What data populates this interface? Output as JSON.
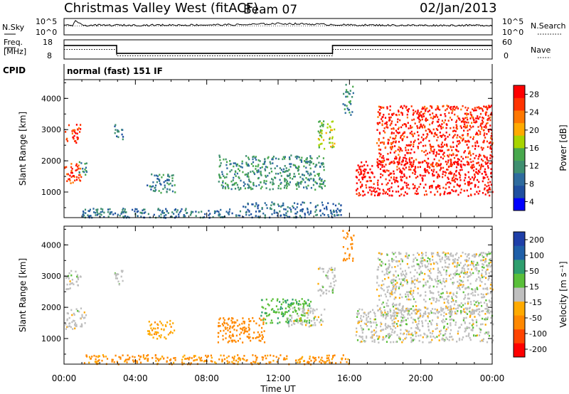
{
  "header": {
    "title": "Christmas Valley West (fitACF)",
    "beam": "Beam 07",
    "date": "02/Jan/2013"
  },
  "noise_panel": {
    "left_label": "N.Sky",
    "left_ticks": [
      "10^5",
      "10^0"
    ],
    "right_label": "N.Search",
    "right_ticks": [
      "10^5",
      "10^0"
    ]
  },
  "freq_panel": {
    "left_label_1": "Freq.",
    "left_label_2": "[MHz]",
    "left_ticks": [
      "18",
      "8"
    ],
    "right_label": "Nave",
    "right_ticks": [
      "60",
      "0"
    ]
  },
  "cpid": {
    "label": "CPID",
    "value": "normal (fast) 151 IF"
  },
  "colors": {
    "power": [
      "#0000ff",
      "#1f4fa0",
      "#2e6b9e",
      "#3f8f70",
      "#48a84d",
      "#a8d400",
      "#ffaa00",
      "#ff7700",
      "#ff3300",
      "#ff0000"
    ],
    "velocity_neg": [
      "#ff0000",
      "#ff4400",
      "#ff8800",
      "#ffaa00",
      "#ffcc33"
    ],
    "velocity_gs": "#bfbfbf",
    "velocity_pos": [
      "#5abf3a",
      "#2e9e6e",
      "#1f5fa8",
      "#1f3fa8",
      "#0000ff"
    ]
  },
  "power_colorbar": {
    "label": "Power [dB]",
    "ticks": [
      "28",
      "24",
      "20",
      "16",
      "12",
      "8",
      "4"
    ]
  },
  "velocity_colorbar": {
    "label": "Velocity [m s⁻¹]",
    "ticks": [
      "200",
      "100",
      "50",
      "15",
      "-15",
      "-50",
      "-100",
      "-200"
    ]
  },
  "axes": {
    "ylabel": "Slant Range [km]",
    "yticks": [
      "4000",
      "3000",
      "2000",
      "1000"
    ],
    "xlabel": "Time UT",
    "xticks": [
      "00:00",
      "04:00",
      "08:00",
      "12:00",
      "16:00",
      "20:00",
      "00:00"
    ]
  },
  "chart_data": [
    {
      "type": "heatmap",
      "panel": "power",
      "xlabel": "Time UT",
      "ylabel": "Slant Range [km]",
      "xlim_hours": [
        0,
        24
      ],
      "ylim_km": [
        180,
        4600
      ],
      "colorbar": "Power [dB]",
      "colorbar_range": [
        0,
        30
      ],
      "regions": [
        {
          "t": [
            0.0,
            0.95
          ],
          "r": [
            1300,
            2000
          ],
          "dB": 26
        },
        {
          "t": [
            0.0,
            0.9
          ],
          "r": [
            2600,
            3200
          ],
          "dB": 27
        },
        {
          "t": [
            0.8,
            1.3
          ],
          "r": [
            1500,
            2000
          ],
          "dB": 10
        },
        {
          "t": [
            2.8,
            3.3
          ],
          "r": [
            2700,
            3200
          ],
          "dB": 8
        },
        {
          "t": [
            4.6,
            6.2
          ],
          "r": [
            1000,
            1600
          ],
          "dB": 9
        },
        {
          "t": [
            8.6,
            14.6
          ],
          "r": [
            1100,
            2200
          ],
          "dB": 11
        },
        {
          "t": [
            1.0,
            10.0
          ],
          "r": [
            200,
            500
          ],
          "dB": 8
        },
        {
          "t": [
            10.0,
            15.5
          ],
          "r": [
            200,
            700
          ],
          "dB": 7
        },
        {
          "t": [
            14.2,
            15.2
          ],
          "r": [
            2400,
            3300
          ],
          "dB": 16
        },
        {
          "t": [
            15.6,
            16.2
          ],
          "r": [
            3500,
            4500
          ],
          "dB": 10
        },
        {
          "t": [
            16.3,
            24.0
          ],
          "r": [
            900,
            2000
          ],
          "dB": 29
        },
        {
          "t": [
            17.5,
            24.0
          ],
          "r": [
            1800,
            3800
          ],
          "dB": 27
        }
      ]
    },
    {
      "type": "heatmap",
      "panel": "velocity",
      "xlabel": "Time UT",
      "ylabel": "Slant Range [km]",
      "xlim_hours": [
        0,
        24
      ],
      "ylim_km": [
        180,
        4600
      ],
      "colorbar": "Velocity [m s⁻¹]",
      "colorbar_range": [
        -250,
        250
      ],
      "regions": [
        {
          "t": [
            0.0,
            1.2
          ],
          "r": [
            1300,
            2000
          ],
          "v": 0
        },
        {
          "t": [
            0.0,
            0.9
          ],
          "r": [
            2600,
            3200
          ],
          "v": 0
        },
        {
          "t": [
            2.8,
            3.3
          ],
          "r": [
            2700,
            3200
          ],
          "v": 0
        },
        {
          "t": [
            4.6,
            6.2
          ],
          "r": [
            1000,
            1600
          ],
          "v": -40
        },
        {
          "t": [
            8.6,
            11.2
          ],
          "r": [
            900,
            1700
          ],
          "v": -80
        },
        {
          "t": [
            11.0,
            13.8
          ],
          "r": [
            1500,
            2300
          ],
          "v": 40
        },
        {
          "t": [
            12.5,
            14.6
          ],
          "r": [
            1400,
            2000
          ],
          "v": 0
        },
        {
          "t": [
            1.0,
            16.0
          ],
          "r": [
            200,
            500
          ],
          "v": -60
        },
        {
          "t": [
            14.2,
            15.2
          ],
          "r": [
            2400,
            3300
          ],
          "v": 0
        },
        {
          "t": [
            15.6,
            16.2
          ],
          "r": [
            3500,
            4500
          ],
          "v": -80
        },
        {
          "t": [
            16.3,
            24.0
          ],
          "r": [
            900,
            2000
          ],
          "v": 0
        },
        {
          "t": [
            17.5,
            24.0
          ],
          "r": [
            1800,
            3800
          ],
          "v": 0
        }
      ]
    },
    {
      "type": "line",
      "panel": "noise",
      "series": [
        {
          "name": "N.Sky",
          "x": [
            0,
            0.5,
            0.6,
            1,
            6,
            10,
            12,
            14,
            16,
            20,
            24
          ],
          "y": [
            3.1,
            3.1,
            5,
            3.2,
            3.3,
            3.4,
            3.8,
            3.6,
            3.3,
            3.2,
            3.2
          ]
        }
      ]
    },
    {
      "type": "line",
      "panel": "frequency",
      "series": [
        {
          "name": "Freq.",
          "x": [
            0,
            2.95,
            2.95,
            15.05,
            15.05,
            24
          ],
          "y": [
            15.5,
            15.5,
            10.5,
            10.5,
            15.5,
            15.5
          ]
        },
        {
          "name": "Nave",
          "x": [
            0,
            2.95,
            2.95,
            15.05,
            15.05,
            24
          ],
          "y": [
            30,
            30,
            10,
            10,
            30,
            30
          ]
        }
      ]
    }
  ]
}
